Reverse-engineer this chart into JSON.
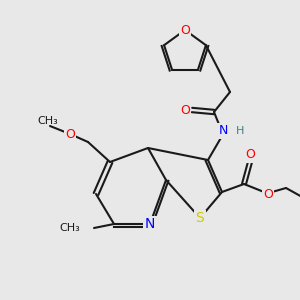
{
  "background_color": "#e8e8e8",
  "bond_color": "#1a1a1a",
  "atom_colors": {
    "O": "#ff0000",
    "N": "#0000ff",
    "S": "#cccc00",
    "C": "#1a1a1a",
    "H": "#408080"
  },
  "lw": 1.5,
  "font_size": 9
}
